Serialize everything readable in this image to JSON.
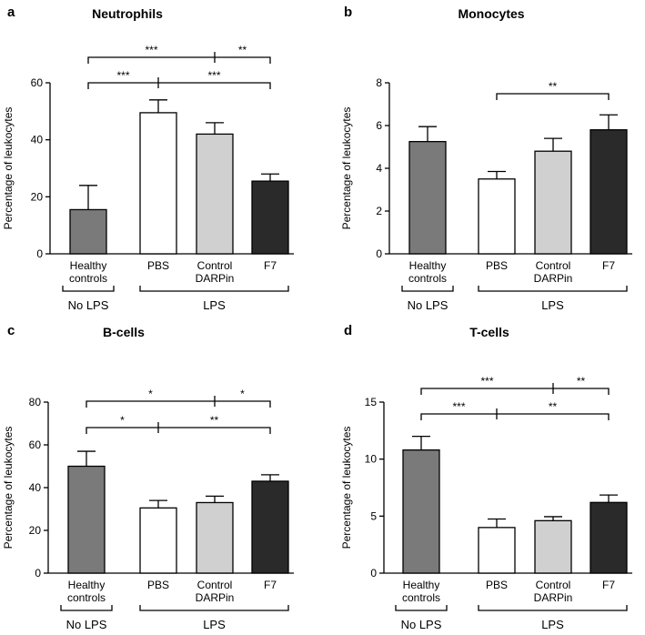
{
  "colors": {
    "healthy": "#7a7a7a",
    "pbs": "#ffffff",
    "control": "#d0d0d0",
    "f7": "#2a2a2a",
    "stroke": "#000000"
  },
  "chart_data": [
    {
      "type": "bar",
      "panel_letter": "a",
      "title": "Neutrophils",
      "ylabel": "Percentage of leukocytes",
      "ylim": [
        0,
        60
      ],
      "yticks": [
        0,
        20,
        40,
        60
      ],
      "categories": [
        [
          "Healthy",
          "controls"
        ],
        [
          "PBS"
        ],
        [
          "Control",
          "DARPin"
        ],
        [
          "F7"
        ]
      ],
      "values": [
        15.5,
        49.5,
        42.0,
        25.5
      ],
      "errors": [
        8.5,
        4.5,
        4.0,
        2.5
      ],
      "groups": [
        {
          "label": "No LPS",
          "from": 0,
          "to": 0
        },
        {
          "label": "LPS",
          "from": 1,
          "to": 3
        }
      ],
      "significance": [
        {
          "from": 0,
          "to": 3,
          "mid": 2,
          "labels": [
            "***",
            "**"
          ]
        },
        {
          "from": 0,
          "to": 3,
          "mid": 1,
          "labels": [
            "***",
            "***"
          ]
        }
      ]
    },
    {
      "type": "bar",
      "panel_letter": "b",
      "title": "Monocytes",
      "ylabel": "Percentage of leukocytes",
      "ylim": [
        0,
        8
      ],
      "yticks": [
        0,
        2,
        4,
        6,
        8
      ],
      "categories": [
        [
          "Healthy",
          "controls"
        ],
        [
          "PBS"
        ],
        [
          "Control",
          "DARPin"
        ],
        [
          "F7"
        ]
      ],
      "values": [
        5.25,
        3.5,
        4.8,
        5.8
      ],
      "errors": [
        0.7,
        0.35,
        0.6,
        0.7
      ],
      "groups": [
        {
          "label": "No LPS",
          "from": 0,
          "to": 0
        },
        {
          "label": "LPS",
          "from": 1,
          "to": 3
        }
      ],
      "significance": [
        {
          "from": 1,
          "to": 3,
          "labels": [
            "**"
          ]
        }
      ]
    },
    {
      "type": "bar",
      "panel_letter": "c",
      "title": "B-cells",
      "ylabel": "Percentage of leukocytes",
      "ylim": [
        0,
        80
      ],
      "yticks": [
        0,
        20,
        40,
        60,
        80
      ],
      "categories": [
        [
          "Healthy",
          "controls"
        ],
        [
          "PBS"
        ],
        [
          "Control",
          "DARPin"
        ],
        [
          "F7"
        ]
      ],
      "values": [
        50.0,
        30.5,
        33.0,
        43.0
      ],
      "errors": [
        7.0,
        3.5,
        3.0,
        3.0
      ],
      "groups": [
        {
          "label": "No LPS",
          "from": 0,
          "to": 0
        },
        {
          "label": "LPS",
          "from": 1,
          "to": 3
        }
      ],
      "significance": [
        {
          "from": 0,
          "to": 3,
          "mid": 2,
          "labels": [
            "*",
            "*"
          ]
        },
        {
          "from": 0,
          "to": 3,
          "mid": 1,
          "labels": [
            "*",
            "**"
          ]
        }
      ]
    },
    {
      "type": "bar",
      "panel_letter": "d",
      "title": "T-cells",
      "ylabel": "Percentage of leukocytes",
      "ylim": [
        0,
        15
      ],
      "yticks": [
        0,
        5,
        10,
        15
      ],
      "categories": [
        [
          "Healthy",
          "controls"
        ],
        [
          "PBS"
        ],
        [
          "Control",
          "DARPin"
        ],
        [
          "F7"
        ]
      ],
      "values": [
        10.8,
        4.0,
        4.6,
        6.2
      ],
      "errors": [
        1.2,
        0.75,
        0.35,
        0.65
      ],
      "groups": [
        {
          "label": "No LPS",
          "from": 0,
          "to": 0
        },
        {
          "label": "LPS",
          "from": 1,
          "to": 3
        }
      ],
      "significance": [
        {
          "from": 0,
          "to": 3,
          "mid": 2,
          "labels": [
            "***",
            "**"
          ]
        },
        {
          "from": 0,
          "to": 3,
          "mid": 1,
          "labels": [
            "***",
            "**"
          ]
        }
      ]
    }
  ]
}
